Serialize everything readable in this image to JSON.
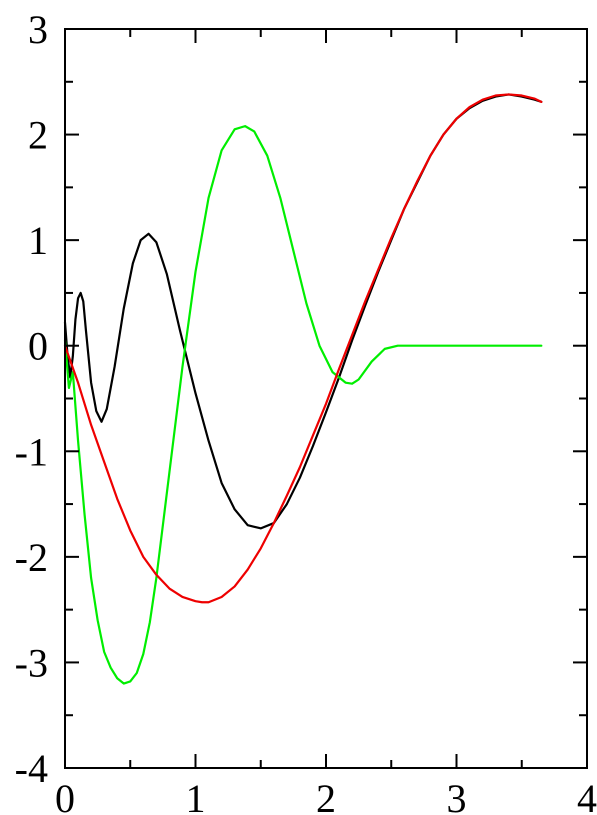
{
  "chart_data": {
    "type": "line",
    "title": "",
    "xlabel": "",
    "ylabel": "",
    "xlim": [
      0,
      4
    ],
    "ylim": [
      -4,
      3
    ],
    "x_ticks": [
      0,
      1,
      2,
      3,
      4
    ],
    "x_tick_labels": [
      "0",
      "1",
      "2",
      "3",
      "4"
    ],
    "y_ticks": [
      3,
      2,
      1,
      0,
      -1,
      -2,
      -3,
      -4
    ],
    "y_tick_labels": [
      "3",
      "2",
      "1",
      "0",
      "-1",
      "-2",
      "-3",
      "-4"
    ],
    "minor_ticks": true,
    "grid": false,
    "legend": "none",
    "series": [
      {
        "color": "#000000",
        "points": [
          [
            0,
            0.22
          ],
          [
            0.02,
            -0.1
          ],
          [
            0.04,
            -0.3
          ],
          [
            0.06,
            -0.1
          ],
          [
            0.08,
            0.25
          ],
          [
            0.1,
            0.45
          ],
          [
            0.12,
            0.5
          ],
          [
            0.14,
            0.42
          ],
          [
            0.16,
            0.15
          ],
          [
            0.2,
            -0.35
          ],
          [
            0.24,
            -0.62
          ],
          [
            0.28,
            -0.72
          ],
          [
            0.32,
            -0.6
          ],
          [
            0.38,
            -0.2
          ],
          [
            0.45,
            0.35
          ],
          [
            0.52,
            0.78
          ],
          [
            0.58,
            1.0
          ],
          [
            0.64,
            1.06
          ],
          [
            0.7,
            0.98
          ],
          [
            0.78,
            0.68
          ],
          [
            0.88,
            0.15
          ],
          [
            1.0,
            -0.45
          ],
          [
            1.1,
            -0.9
          ],
          [
            1.2,
            -1.3
          ],
          [
            1.3,
            -1.55
          ],
          [
            1.4,
            -1.7
          ],
          [
            1.5,
            -1.73
          ],
          [
            1.6,
            -1.68
          ],
          [
            1.7,
            -1.5
          ],
          [
            1.8,
            -1.25
          ],
          [
            1.9,
            -0.95
          ],
          [
            2.0,
            -0.63
          ],
          [
            2.1,
            -0.3
          ],
          [
            2.2,
            0.05
          ],
          [
            2.3,
            0.38
          ],
          [
            2.4,
            0.7
          ],
          [
            2.5,
            1.0
          ],
          [
            2.6,
            1.3
          ],
          [
            2.7,
            1.55
          ],
          [
            2.8,
            1.8
          ],
          [
            2.9,
            2.0
          ],
          [
            3.0,
            2.15
          ],
          [
            3.1,
            2.25
          ],
          [
            3.2,
            2.32
          ],
          [
            3.3,
            2.36
          ],
          [
            3.4,
            2.38
          ],
          [
            3.5,
            2.36
          ],
          [
            3.6,
            2.33
          ],
          [
            3.65,
            2.31
          ]
        ]
      },
      {
        "color": "#00ee00",
        "points": [
          [
            0,
            0.05
          ],
          [
            0.03,
            -0.4
          ],
          [
            0.06,
            -0.25
          ],
          [
            0.1,
            -0.9
          ],
          [
            0.15,
            -1.6
          ],
          [
            0.2,
            -2.2
          ],
          [
            0.25,
            -2.6
          ],
          [
            0.3,
            -2.9
          ],
          [
            0.35,
            -3.05
          ],
          [
            0.4,
            -3.15
          ],
          [
            0.45,
            -3.2
          ],
          [
            0.5,
            -3.18
          ],
          [
            0.55,
            -3.1
          ],
          [
            0.6,
            -2.92
          ],
          [
            0.65,
            -2.62
          ],
          [
            0.7,
            -2.2
          ],
          [
            0.8,
            -1.2
          ],
          [
            0.9,
            -0.2
          ],
          [
            1.0,
            0.7
          ],
          [
            1.1,
            1.4
          ],
          [
            1.2,
            1.85
          ],
          [
            1.3,
            2.05
          ],
          [
            1.38,
            2.08
          ],
          [
            1.45,
            2.03
          ],
          [
            1.55,
            1.8
          ],
          [
            1.65,
            1.4
          ],
          [
            1.75,
            0.9
          ],
          [
            1.85,
            0.4
          ],
          [
            1.95,
            0.0
          ],
          [
            2.05,
            -0.25
          ],
          [
            2.15,
            -0.35
          ],
          [
            2.2,
            -0.36
          ],
          [
            2.25,
            -0.32
          ],
          [
            2.35,
            -0.15
          ],
          [
            2.45,
            -0.03
          ],
          [
            2.55,
            0.0
          ],
          [
            2.7,
            0.0
          ],
          [
            3.0,
            0.0
          ],
          [
            3.3,
            0.0
          ],
          [
            3.65,
            0.0
          ]
        ]
      },
      {
        "color": "#ee0000",
        "points": [
          [
            0,
            0.0
          ],
          [
            0.1,
            -0.35
          ],
          [
            0.2,
            -0.75
          ],
          [
            0.3,
            -1.1
          ],
          [
            0.4,
            -1.45
          ],
          [
            0.5,
            -1.75
          ],
          [
            0.6,
            -2.0
          ],
          [
            0.7,
            -2.17
          ],
          [
            0.8,
            -2.3
          ],
          [
            0.9,
            -2.38
          ],
          [
            1.0,
            -2.42
          ],
          [
            1.05,
            -2.43
          ],
          [
            1.1,
            -2.43
          ],
          [
            1.2,
            -2.38
          ],
          [
            1.3,
            -2.28
          ],
          [
            1.4,
            -2.12
          ],
          [
            1.5,
            -1.92
          ],
          [
            1.6,
            -1.68
          ],
          [
            1.7,
            -1.42
          ],
          [
            1.8,
            -1.15
          ],
          [
            1.9,
            -0.85
          ],
          [
            2.0,
            -0.55
          ],
          [
            2.1,
            -0.22
          ],
          [
            2.2,
            0.1
          ],
          [
            2.3,
            0.42
          ],
          [
            2.4,
            0.72
          ],
          [
            2.5,
            1.02
          ],
          [
            2.6,
            1.3
          ],
          [
            2.7,
            1.56
          ],
          [
            2.8,
            1.8
          ],
          [
            2.9,
            2.0
          ],
          [
            3.0,
            2.15
          ],
          [
            3.1,
            2.26
          ],
          [
            3.2,
            2.33
          ],
          [
            3.3,
            2.37
          ],
          [
            3.4,
            2.38
          ],
          [
            3.5,
            2.37
          ],
          [
            3.6,
            2.34
          ],
          [
            3.65,
            2.31
          ]
        ]
      }
    ]
  }
}
